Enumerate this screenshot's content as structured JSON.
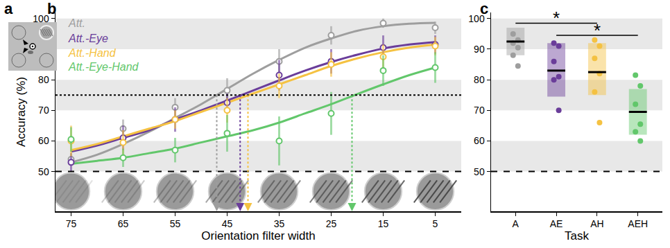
{
  "chart_data": [
    {
      "type": "diagram",
      "title": "a"
    },
    {
      "type": "line",
      "title": "b",
      "x_label": "Orientation filter width",
      "y_label": "Accuracy (%)",
      "x": [
        75,
        65,
        55,
        45,
        35,
        25,
        15,
        5
      ],
      "curve_x": [
        75,
        70,
        65,
        60,
        55,
        50,
        45,
        40,
        35,
        30,
        25,
        20,
        15,
        10,
        5
      ],
      "xlim": [
        78,
        0
      ],
      "xticks": [
        75,
        65,
        55,
        45,
        35,
        25,
        15,
        5
      ],
      "ylim": [
        37,
        102
      ],
      "yticks": [
        50,
        60,
        70,
        80,
        90,
        100
      ],
      "grid": false,
      "legend": "upper left",
      "marker": "open circle",
      "reference_lines": [
        {
          "value": 75,
          "line_style": "dotted"
        },
        {
          "value": 50,
          "line_style": "dashed"
        }
      ],
      "series": [
        {
          "name": "Att.",
          "color": "#9e9e9e",
          "values": [
            54,
            64,
            71,
            76.5,
            86,
            94.5,
            98.5,
            97
          ],
          "errors": [
            2,
            3,
            3,
            4,
            4,
            3,
            1.5,
            2
          ],
          "curve": [
            53,
            55.5,
            59,
            63,
            67.5,
            72,
            77,
            82,
            86.5,
            90.5,
            93.5,
            96,
            97.5,
            98.3,
            98.6
          ],
          "threshold": 47
        },
        {
          "name": "Att.-Eye",
          "color": "#6a3d9a",
          "values": [
            53,
            61,
            67,
            72.5,
            81.5,
            86,
            90.5,
            91.5
          ],
          "errors": [
            3,
            4,
            4,
            3,
            5,
            4,
            4,
            3
          ],
          "curve": [
            56.5,
            58.5,
            61,
            63.5,
            67,
            70,
            73.2,
            76.5,
            79.8,
            83,
            85.8,
            88.2,
            90.2,
            91.5,
            92.3
          ],
          "threshold": 42.5
        },
        {
          "name": "Att.-Hand",
          "color": "#f5c242",
          "values": [
            60,
            59.5,
            67,
            70,
            78,
            85,
            87.5,
            91
          ],
          "errors": [
            5,
            4,
            3,
            4,
            4,
            4,
            4,
            3
          ],
          "curve": [
            57,
            59,
            61.5,
            64,
            66.5,
            69.5,
            72.5,
            75.5,
            78.5,
            81.5,
            84.5,
            87,
            89,
            90.5,
            91.5
          ],
          "threshold": 41
        },
        {
          "name": "Att.-Eye-Hand",
          "color": "#62c76b",
          "values": [
            60.5,
            54.5,
            57,
            62.5,
            60,
            69,
            83,
            84
          ],
          "errors": [
            4,
            3,
            4,
            6,
            8,
            7,
            5,
            5
          ],
          "curve": [
            52.5,
            53.5,
            54.5,
            56,
            57.5,
            59.5,
            61.5,
            63.5,
            66,
            69,
            72,
            75.3,
            78.5,
            81.5,
            84
          ],
          "threshold": 21
        }
      ]
    },
    {
      "type": "dot_box",
      "title": "c",
      "x_label": "Task",
      "categories": [
        "A",
        "AE",
        "AH",
        "AEH"
      ],
      "colors": [
        "#9e9e9e",
        "#6a3d9a",
        "#f5c242",
        "#62c76b"
      ],
      "points": [
        [
          95,
          93,
          92,
          90.5,
          88,
          84.5
        ],
        [
          92,
          91,
          86,
          81,
          80,
          70
        ],
        [
          93,
          91,
          87,
          82,
          76,
          66
        ],
        [
          81.5,
          78,
          72,
          65.5,
          63,
          60
        ]
      ],
      "means": [
        92.5,
        83,
        82.5,
        69.5
      ],
      "box_low": [
        88,
        74.5,
        75,
        62
      ],
      "box_high": [
        97,
        92,
        92,
        77
      ],
      "ylim": [
        37,
        102
      ],
      "yticks": [
        50,
        60,
        70,
        80,
        90,
        100
      ],
      "grid": false,
      "reference_lines": [
        {
          "value": 50,
          "line_style": "dashed"
        }
      ],
      "brackets": [
        {
          "from": "A",
          "to": "AH",
          "y": 98.5,
          "label": "*"
        },
        {
          "from": "AE",
          "to": "AEH",
          "y": 94.5,
          "label": "*"
        }
      ]
    }
  ]
}
